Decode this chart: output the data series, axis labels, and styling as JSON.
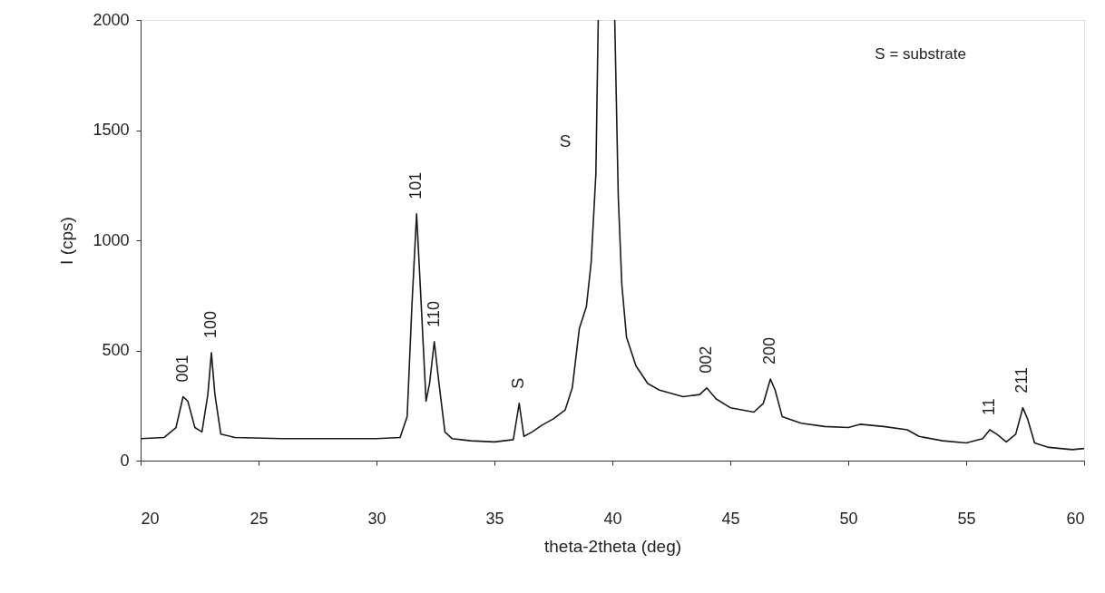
{
  "chart_data": {
    "type": "line",
    "xlabel": "theta-2theta (deg)",
    "ylabel": "I (cps)",
    "xlim": [
      20,
      60
    ],
    "xticks": [
      20,
      25,
      30,
      35,
      40,
      45,
      50,
      55,
      60
    ],
    "ylim": [
      0,
      2000
    ],
    "yticks": [
      0,
      500,
      {
        "value": 1000,
        "label": "1000"
      },
      {
        "value": 1500,
        "label": "1500"
      },
      {
        "value": 2000,
        "label": "2000"
      }
    ],
    "grid": false,
    "marker": "none",
    "line_style": "solid",
    "series": [
      {
        "color": "#1a1a1a",
        "x": [
          20,
          21,
          21.5,
          21.8,
          22,
          22.3,
          22.6,
          22.85,
          23,
          23.15,
          23.4,
          24,
          26,
          28,
          30,
          31,
          31.3,
          31.5,
          31.7,
          31.9,
          32.1,
          32.25,
          32.45,
          32.65,
          32.9,
          33.2,
          34,
          35,
          35.8,
          36.05,
          36.25,
          36.6,
          37,
          37.5,
          38,
          38.3,
          38.6,
          38.9,
          39.1,
          39.3,
          39.4,
          39.75,
          40.1,
          40.25,
          40.4,
          40.6,
          41,
          41.5,
          42,
          43,
          43.7,
          44,
          44.4,
          45,
          46,
          46.4,
          46.7,
          46.9,
          47.2,
          48,
          49,
          50,
          50.5,
          51.5,
          52.5,
          53,
          54,
          55,
          55.7,
          56,
          56.3,
          56.7,
          57.1,
          57.4,
          57.6,
          57.9,
          58.5,
          59.5,
          60
        ],
        "values": [
          100,
          105,
          150,
          290,
          270,
          150,
          130,
          300,
          490,
          300,
          120,
          105,
          100,
          100,
          100,
          105,
          200,
          700,
          1120,
          700,
          270,
          350,
          540,
          350,
          130,
          100,
          90,
          85,
          95,
          260,
          110,
          130,
          160,
          190,
          230,
          330,
          600,
          700,
          900,
          1300,
          2000,
          null,
          2000,
          1200,
          800,
          560,
          430,
          350,
          320,
          290,
          300,
          330,
          280,
          240,
          220,
          260,
          370,
          320,
          200,
          170,
          155,
          150,
          165,
          155,
          140,
          110,
          90,
          80,
          100,
          140,
          120,
          85,
          120,
          240,
          190,
          80,
          60,
          50,
          55
        ]
      }
    ],
    "annotations": [
      {
        "text": "001",
        "x": 21.8,
        "y": 290
      },
      {
        "text": "100",
        "x": 23,
        "y": 490
      },
      {
        "text": "101",
        "x": 31.7,
        "y": 1120
      },
      {
        "text": "110",
        "x": 32.45,
        "y": 540
      },
      {
        "text": "S",
        "x": 36.05,
        "y": 260
      },
      {
        "text": "002",
        "x": 44,
        "y": 330
      },
      {
        "text": "200",
        "x": 46.7,
        "y": 370
      },
      {
        "text": "11",
        "x": 56,
        "y": 140
      },
      {
        "text": "211",
        "x": 57.4,
        "y": 240
      },
      "S = substrate",
      "S"
    ]
  }
}
